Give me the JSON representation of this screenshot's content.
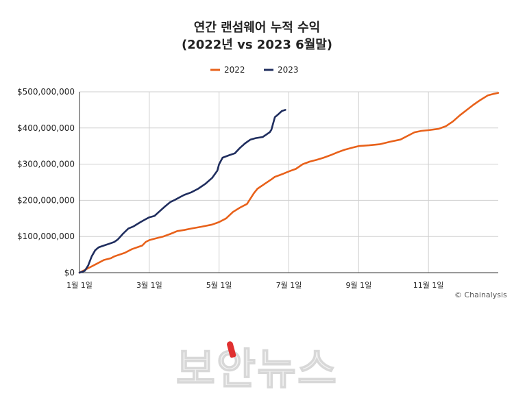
{
  "chart_data": {
    "type": "line",
    "title_lines": [
      "연간 랜섬웨어 누적 수익",
      "(2022년 vs 2023 6월말)"
    ],
    "xlabel": "",
    "ylabel": "",
    "x_unit": "month (1 = January)",
    "xlim": [
      1,
      13
    ],
    "ylim": [
      0,
      500000000
    ],
    "x_tick_values": [
      1,
      3,
      5,
      7,
      9,
      11
    ],
    "x_tick_labels": [
      "1월 1일",
      "3월 1일",
      "5월 1일",
      "7월 1일",
      "9월 1일",
      "11월 1일"
    ],
    "y_tick_values": [
      0,
      100000000,
      200000000,
      300000000,
      400000000,
      500000000
    ],
    "y_tick_labels": [
      "$0",
      "$100,000,000",
      "$200,000,000",
      "$300,000,000",
      "$400,000,000",
      "$500,000,000"
    ],
    "grid": true,
    "legend_position": "top-center",
    "series": [
      {
        "name": "2022",
        "color": "#e8611a",
        "x": [
          1.0,
          1.1,
          1.3,
          1.5,
          1.7,
          1.9,
          2.0,
          2.3,
          2.5,
          2.8,
          2.9,
          3.0,
          3.2,
          3.4,
          3.6,
          3.8,
          4.0,
          4.2,
          4.5,
          4.8,
          5.0,
          5.2,
          5.4,
          5.6,
          5.8,
          6.0,
          6.1,
          6.3,
          6.5,
          6.6,
          6.8,
          7.0,
          7.2,
          7.4,
          7.6,
          7.8,
          8.0,
          8.2,
          8.4,
          8.6,
          8.8,
          9.0,
          9.3,
          9.6,
          9.9,
          10.2,
          10.4,
          10.6,
          10.8,
          11.0,
          11.3,
          11.5,
          11.7,
          11.9,
          12.1,
          12.3,
          12.5,
          12.7,
          12.85,
          13.0
        ],
        "values": [
          0,
          5000000,
          15000000,
          25000000,
          35000000,
          40000000,
          45000000,
          55000000,
          65000000,
          75000000,
          85000000,
          90000000,
          95000000,
          100000000,
          107000000,
          115000000,
          118000000,
          122000000,
          127000000,
          133000000,
          140000000,
          150000000,
          168000000,
          180000000,
          190000000,
          220000000,
          232000000,
          245000000,
          258000000,
          265000000,
          272000000,
          280000000,
          287000000,
          300000000,
          307000000,
          312000000,
          318000000,
          325000000,
          333000000,
          340000000,
          345000000,
          350000000,
          352000000,
          355000000,
          362000000,
          368000000,
          378000000,
          388000000,
          392000000,
          394000000,
          398000000,
          405000000,
          418000000,
          435000000,
          450000000,
          465000000,
          478000000,
          490000000,
          494000000,
          497000000
        ]
      },
      {
        "name": "2023",
        "color": "#1f2d5e",
        "x": [
          1.0,
          1.15,
          1.25,
          1.35,
          1.45,
          1.55,
          1.7,
          1.85,
          2.0,
          2.1,
          2.25,
          2.4,
          2.55,
          2.75,
          2.9,
          3.0,
          3.15,
          3.3,
          3.45,
          3.6,
          3.75,
          3.9,
          4.0,
          4.2,
          4.4,
          4.6,
          4.8,
          4.95,
          5.0,
          5.1,
          5.3,
          5.45,
          5.6,
          5.75,
          5.9,
          6.05,
          6.25,
          6.45,
          6.5,
          6.6,
          6.7,
          6.8,
          6.9
        ],
        "values": [
          0,
          5000000,
          20000000,
          45000000,
          62000000,
          70000000,
          75000000,
          80000000,
          85000000,
          92000000,
          108000000,
          122000000,
          128000000,
          140000000,
          148000000,
          153000000,
          157000000,
          170000000,
          183000000,
          195000000,
          202000000,
          210000000,
          215000000,
          222000000,
          232000000,
          245000000,
          262000000,
          282000000,
          300000000,
          318000000,
          325000000,
          330000000,
          345000000,
          358000000,
          368000000,
          372000000,
          375000000,
          388000000,
          395000000,
          430000000,
          438000000,
          447000000,
          450000000
        ]
      }
    ],
    "source_credit": "© Chainalysis"
  },
  "watermark": {
    "text": "보안뉴스"
  }
}
